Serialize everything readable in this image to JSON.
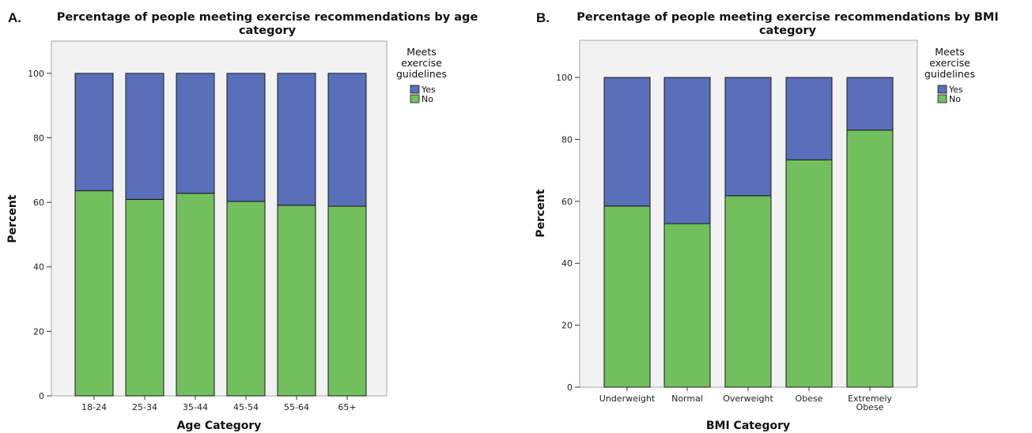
{
  "colors": {
    "yes": "#5a6fba",
    "no": "#72bf5e",
    "plot_bg": "#f2f2f2",
    "frame": "#a6a6a6",
    "bar_edge": "#1a1a1a"
  },
  "chart_data": [
    {
      "type": "bar",
      "stacked": true,
      "panel_label": "A.",
      "title_line1": "Percentage of people meeting exercise recommendations by age",
      "title_line2": "category",
      "xlabel": "Age Category",
      "ylabel": "Percent",
      "ylim": [
        0,
        110
      ],
      "yticks": [
        0,
        20,
        40,
        60,
        80,
        100
      ],
      "grid": false,
      "legend": {
        "title_lines": [
          "Meets",
          "exercise",
          "guidelines"
        ],
        "placement": "right",
        "entries": [
          "Yes",
          "No"
        ]
      },
      "categories": [
        {
          "line1": "18-24",
          "line2": ""
        },
        {
          "line1": "25-34",
          "line2": ""
        },
        {
          "line1": "35-44",
          "line2": ""
        },
        {
          "line1": "45-54",
          "line2": ""
        },
        {
          "line1": "55-64",
          "line2": ""
        },
        {
          "line1": "65+",
          "line2": ""
        }
      ],
      "series": [
        {
          "name": "No",
          "values": [
            63.6,
            60.9,
            62.8,
            60.3,
            59.1,
            58.8
          ]
        },
        {
          "name": "Yes",
          "values": [
            36.4,
            39.1,
            37.2,
            39.7,
            40.9,
            41.2
          ]
        }
      ]
    },
    {
      "type": "bar",
      "stacked": true,
      "panel_label": "B.",
      "title_line1": "Percentage of people meeting exercise recommendations by BMI",
      "title_line2": "category",
      "xlabel": "BMI Category",
      "ylabel": "Percent",
      "ylim": [
        0,
        112
      ],
      "yticks": [
        0,
        20,
        40,
        60,
        80,
        100
      ],
      "grid": false,
      "legend": {
        "title_lines": [
          "Meets",
          "exercise",
          "guidelines"
        ],
        "placement": "right",
        "entries": [
          "Yes",
          "No"
        ]
      },
      "categories": [
        {
          "line1": "Underweight",
          "line2": ""
        },
        {
          "line1": "Normal",
          "line2": ""
        },
        {
          "line1": "Overweight",
          "line2": ""
        },
        {
          "line1": "Obese",
          "line2": ""
        },
        {
          "line1": "Extremely",
          "line2": "Obese"
        }
      ],
      "series": [
        {
          "name": "No",
          "values": [
            58.5,
            52.8,
            61.8,
            73.4,
            83.0
          ]
        },
        {
          "name": "Yes",
          "values": [
            41.5,
            47.2,
            38.2,
            26.6,
            17.0
          ]
        }
      ]
    }
  ]
}
